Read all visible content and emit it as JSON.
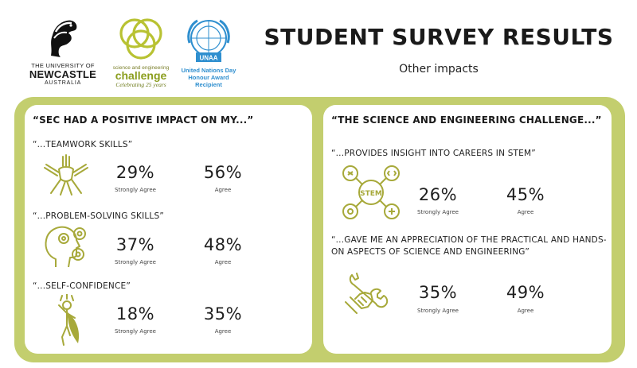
{
  "header": {
    "uon_logo": {
      "line1": "THE UNIVERSITY OF",
      "line2": "NEWCASTLE",
      "line3": "AUSTRALIA"
    },
    "sec_logo": {
      "line1": "science and engineering",
      "line2": "challenge",
      "line3": "Celebrating 25 years"
    },
    "un_logo": {
      "emblem_text": "UNAA",
      "line1": "United Nations Day",
      "line2": "Honour Award",
      "line3": "Recipient"
    },
    "title": "STUDENT SURVEY RESULTS",
    "subtitle": "Other impacts"
  },
  "colors": {
    "frame": "#c3ce6e",
    "icon": "#a7a93a",
    "sec_green": "#8b9e1e",
    "un_blue": "#2f8fcf"
  },
  "left_panel": {
    "heading": "“SEC HAD A POSITIVE IMPACT ON MY...”",
    "items": [
      {
        "label": "“...TEAMWORK SKILLS”",
        "icon": "teamwork-hands-icon",
        "strongly_agree": "29%",
        "strongly_agree_label": "Strongly Agree",
        "agree": "56%",
        "agree_label": "Agree"
      },
      {
        "label": "“...PROBLEM-SOLVING SKILLS”",
        "icon": "head-gears-icon",
        "strongly_agree": "37%",
        "strongly_agree_label": "Strongly Agree",
        "agree": "48%",
        "agree_label": "Agree"
      },
      {
        "label": "“...SELF-CONFIDENCE”",
        "icon": "superhero-icon",
        "strongly_agree": "18%",
        "strongly_agree_label": "Strongly Agree",
        "agree": "35%",
        "agree_label": "Agree"
      }
    ]
  },
  "right_panel": {
    "heading": "“THE SCIENCE AND ENGINEERING CHALLENGE...”",
    "items": [
      {
        "label": "“...PROVIDES INSIGHT INTO CAREERS IN STEM”",
        "icon": "stem-network-icon",
        "icon_text": "STEM",
        "strongly_agree": "26%",
        "strongly_agree_label": "Strongly Agree",
        "agree": "45%",
        "agree_label": "Agree"
      },
      {
        "label": "“...GAVE ME AN APPRECIATION OF THE PRACTICAL AND HANDS-ON ASPECTS OF SCIENCE AND ENGINEERING”",
        "icon": "hand-wrench-icon",
        "strongly_agree": "35%",
        "strongly_agree_label": "Strongly Agree",
        "agree": "49%",
        "agree_label": "Agree"
      }
    ]
  }
}
